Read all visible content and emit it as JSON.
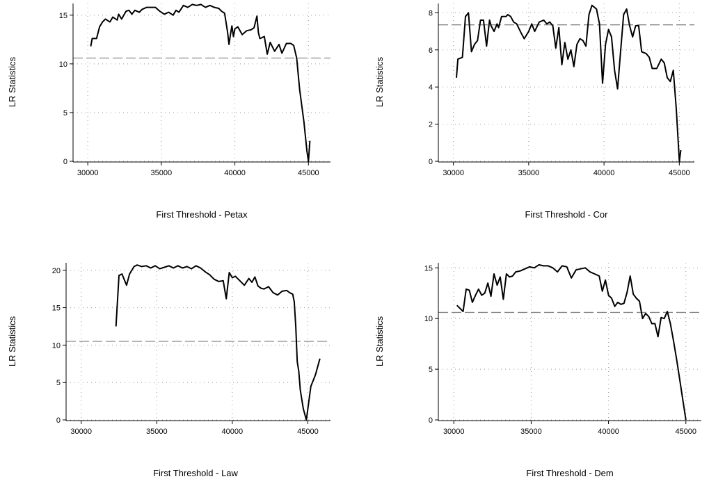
{
  "chart_data": [
    {
      "type": "line",
      "xlabel": "First Threshold - Petax",
      "ylabel": "LR Statistics",
      "xlim": [
        29000,
        46500
      ],
      "ylim": [
        0,
        16.2
      ],
      "xticks": [
        30000,
        35000,
        40000,
        45000
      ],
      "yticks": [
        0,
        5,
        10,
        15
      ],
      "grid": true,
      "reference_line": 10.6,
      "series": [
        {
          "x": [
            30200,
            30300,
            30600,
            30800,
            31000,
            31200,
            31500,
            31700,
            32000,
            32100,
            32300,
            32600,
            32800,
            33000,
            33200,
            33500,
            33700,
            34000,
            34300,
            34600,
            34900,
            35200,
            35500,
            35800,
            36000,
            36200,
            36500,
            36800,
            37100,
            37400,
            37700,
            38000,
            38300,
            38600,
            38900,
            39100,
            39300,
            39500,
            39600,
            39700,
            39800,
            39900,
            40000,
            40200,
            40500,
            40800,
            41100,
            41300,
            41500,
            41600,
            41700,
            42000,
            42200,
            42400,
            42700,
            43000,
            43200,
            43500,
            43800,
            44000,
            44200,
            44400,
            44700,
            44900,
            45000,
            45100
          ],
          "y": [
            11.8,
            12.6,
            12.6,
            13.8,
            14.3,
            14.6,
            14.3,
            14.8,
            14.5,
            15.1,
            14.6,
            15.4,
            15.5,
            15.1,
            15.5,
            15.3,
            15.6,
            15.8,
            15.8,
            15.8,
            15.4,
            15.1,
            15.3,
            15.0,
            15.5,
            15.3,
            16.0,
            15.8,
            16.1,
            16.0,
            16.1,
            15.8,
            16.0,
            15.8,
            15.7,
            15.4,
            15.2,
            13.3,
            12.0,
            13.0,
            13.9,
            12.8,
            13.6,
            13.8,
            13.0,
            13.4,
            13.5,
            13.7,
            14.9,
            13.2,
            12.6,
            12.8,
            11.0,
            12.2,
            11.3,
            12.0,
            11.1,
            12.1,
            12.1,
            11.9,
            10.6,
            7.4,
            4.0,
            1.0,
            0.0,
            2.1
          ]
        }
      ]
    },
    {
      "type": "line",
      "xlabel": "First Threshold - Cor",
      "ylabel": "LR Statistics",
      "xlim": [
        29000,
        46000
      ],
      "ylim": [
        0,
        8.5
      ],
      "xticks": [
        30000,
        35000,
        40000,
        45000
      ],
      "yticks": [
        0,
        2,
        4,
        6,
        8
      ],
      "grid": true,
      "reference_line": 7.35,
      "series": [
        {
          "x": [
            30200,
            30300,
            30600,
            30800,
            31000,
            31200,
            31400,
            31600,
            31800,
            32000,
            32200,
            32400,
            32500,
            32700,
            32900,
            33000,
            33200,
            33500,
            33600,
            33800,
            34000,
            34200,
            34500,
            34700,
            35000,
            35200,
            35400,
            35700,
            36000,
            36200,
            36400,
            36600,
            36800,
            37000,
            37200,
            37400,
            37600,
            37800,
            38000,
            38200,
            38400,
            38600,
            38800,
            39000,
            39200,
            39500,
            39700,
            39900,
            40100,
            40300,
            40500,
            40700,
            40900,
            41100,
            41300,
            41500,
            41700,
            41900,
            42100,
            42300,
            42500,
            42800,
            43000,
            43200,
            43500,
            43800,
            44000,
            44200,
            44400,
            44600,
            44800,
            45000,
            45100
          ],
          "y": [
            4.5,
            5.5,
            5.6,
            7.8,
            8.0,
            5.9,
            6.3,
            6.5,
            7.6,
            7.6,
            6.2,
            7.6,
            7.3,
            7.0,
            7.4,
            7.2,
            7.8,
            7.8,
            7.9,
            7.8,
            7.5,
            7.4,
            6.9,
            6.6,
            7.0,
            7.4,
            7.0,
            7.5,
            7.6,
            7.4,
            7.5,
            7.3,
            6.1,
            7.2,
            5.2,
            6.4,
            5.5,
            6.0,
            5.1,
            6.3,
            6.6,
            6.5,
            6.2,
            7.9,
            8.4,
            8.2,
            7.4,
            4.2,
            6.3,
            7.1,
            6.7,
            4.9,
            3.9,
            5.9,
            7.9,
            8.2,
            7.3,
            6.7,
            7.3,
            7.3,
            5.9,
            5.8,
            5.6,
            5.0,
            5.0,
            5.5,
            5.3,
            4.5,
            4.3,
            4.9,
            2.8,
            0.0,
            0.6
          ]
        }
      ]
    },
    {
      "type": "line",
      "xlabel": "First Threshold - Law",
      "ylabel": "LR Statistics",
      "xlim": [
        29000,
        46500
      ],
      "ylim": [
        0,
        21
      ],
      "xticks": [
        30000,
        35000,
        40000,
        45000
      ],
      "yticks": [
        0,
        5,
        10,
        15,
        20
      ],
      "grid": true,
      "reference_line": 10.5,
      "series": [
        {
          "x": [
            32300,
            32500,
            32700,
            33000,
            33200,
            33500,
            33700,
            34000,
            34300,
            34600,
            34900,
            35200,
            35500,
            35800,
            36100,
            36400,
            36700,
            37000,
            37300,
            37600,
            37900,
            38200,
            38500,
            38800,
            39100,
            39400,
            39600,
            39800,
            40000,
            40200,
            40500,
            40800,
            41100,
            41300,
            41500,
            41700,
            41900,
            42100,
            42400,
            42700,
            43000,
            43300,
            43600,
            43800,
            44000,
            44100,
            44200,
            44300,
            44400,
            44500,
            44700,
            44900,
            45200,
            45500,
            45800
          ],
          "y": [
            12.5,
            19.3,
            19.5,
            18.0,
            19.5,
            20.5,
            20.7,
            20.5,
            20.6,
            20.3,
            20.6,
            20.2,
            20.4,
            20.6,
            20.3,
            20.6,
            20.3,
            20.5,
            20.2,
            20.6,
            20.3,
            19.8,
            19.4,
            18.8,
            18.5,
            18.6,
            16.2,
            19.7,
            19.0,
            19.2,
            18.6,
            18.0,
            18.9,
            18.4,
            19.1,
            17.9,
            17.6,
            17.5,
            17.8,
            17.0,
            16.7,
            17.2,
            17.3,
            17.0,
            16.8,
            15.8,
            12.5,
            7.8,
            6.5,
            4.0,
            1.5,
            0.0,
            4.5,
            6.0,
            8.2
          ]
        }
      ]
    },
    {
      "type": "line",
      "xlabel": "First Threshold - Dem",
      "ylabel": "LR Statistics",
      "xlim": [
        29000,
        46000
      ],
      "ylim": [
        0,
        15.5
      ],
      "xticks": [
        30000,
        35000,
        40000,
        45000
      ],
      "yticks": [
        0,
        5,
        10,
        15
      ],
      "grid": true,
      "reference_line": 10.6,
      "series": [
        {
          "x": [
            30200,
            30400,
            30600,
            30800,
            31000,
            31200,
            31400,
            31600,
            31800,
            32000,
            32200,
            32400,
            32600,
            32800,
            33000,
            33200,
            33400,
            33600,
            33800,
            34000,
            34300,
            34600,
            34900,
            35200,
            35500,
            35800,
            36100,
            36400,
            36700,
            37000,
            37300,
            37600,
            37900,
            38200,
            38500,
            38800,
            39100,
            39400,
            39600,
            39800,
            40000,
            40200,
            40400,
            40600,
            40800,
            41000,
            41200,
            41400,
            41600,
            41800,
            42000,
            42200,
            42400,
            42600,
            42800,
            43000,
            43200,
            43400,
            43600,
            43800,
            44000,
            44200,
            44400,
            44600,
            44800,
            45000
          ],
          "y": [
            11.3,
            11.0,
            10.7,
            12.9,
            12.8,
            11.6,
            12.3,
            12.9,
            12.3,
            12.5,
            13.5,
            12.2,
            14.4,
            13.3,
            14.1,
            11.9,
            14.4,
            14.1,
            14.2,
            14.6,
            14.7,
            14.9,
            15.1,
            15.0,
            15.3,
            15.2,
            15.2,
            15.0,
            14.6,
            15.2,
            15.1,
            14.0,
            14.8,
            14.9,
            15.0,
            14.6,
            14.4,
            14.2,
            12.7,
            13.8,
            12.3,
            12.0,
            11.2,
            11.6,
            11.4,
            11.5,
            12.6,
            14.2,
            12.4,
            12.0,
            11.7,
            10.0,
            10.5,
            10.2,
            9.5,
            9.5,
            8.2,
            10.1,
            10.0,
            10.7,
            9.5,
            7.8,
            6.0,
            4.0,
            2.0,
            0.0
          ]
        }
      ]
    }
  ]
}
